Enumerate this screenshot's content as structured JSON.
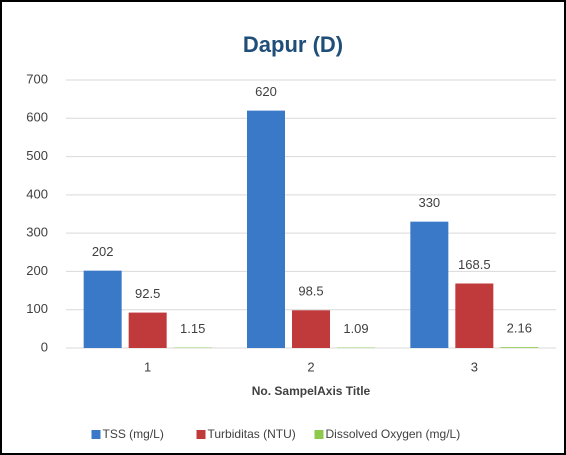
{
  "chart_data": {
    "type": "bar",
    "title": "Dapur (D)",
    "x_label": "No. SampelAxis Title",
    "categories": [
      "1",
      "2",
      "3"
    ],
    "series": [
      {
        "name": "TSS (mg/L)",
        "color": "#3a78c8",
        "values": [
          202,
          620,
          330
        ]
      },
      {
        "name": "Turbiditas (NTU)",
        "color": "#c0393b",
        "values": [
          92.5,
          98.5,
          168.5
        ]
      },
      {
        "name": "Dissolved Oxygen (mg/L)",
        "color": "#8dc94a",
        "values": [
          1.15,
          1.09,
          2.16
        ]
      }
    ],
    "ylim": [
      0,
      700
    ],
    "yticks": [
      0,
      100,
      200,
      300,
      400,
      500,
      600,
      700
    ],
    "grid": true,
    "legend": "bottom"
  }
}
